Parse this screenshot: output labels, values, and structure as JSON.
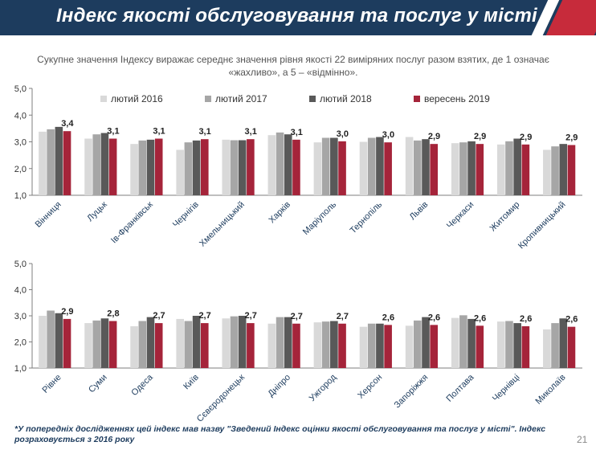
{
  "header": {
    "title": "Індекс якості обслуговування та послуг у місті"
  },
  "subtitle": "Сукупне значення Індексу виражає середнє значення рівня якості 22 виміряних послуг разом взятих, де 1 означає «жахливо», а 5 – «відмінно».",
  "footnote": "*У попередніх дослідженнях цей індекс мав назву \"Зведений Індекс оцінки якості обслуговування та послуг у місті\". Індекс розраховується з 2016 року",
  "page_number": "21",
  "colors": {
    "header_bg": "#1d3c5e",
    "accent_red": "#c72b3b",
    "series": [
      "#d9d9d9",
      "#a6a6a6",
      "#595959",
      "#a5243a"
    ]
  },
  "chart_data": [
    {
      "type": "bar",
      "title": "",
      "xlabel": "",
      "ylabel": "",
      "ylim": [
        1.0,
        5.0
      ],
      "yticks": [
        "1,0",
        "2,0",
        "3,0",
        "4,0",
        "5,0"
      ],
      "legend_placement": "top",
      "series": [
        {
          "name": "лютий 2016",
          "values": [
            3.38,
            3.12,
            2.92,
            2.7,
            3.08,
            3.25,
            2.98,
            3.0,
            3.18,
            2.95,
            2.9,
            2.7
          ]
        },
        {
          "name": "лютий 2017",
          "values": [
            3.47,
            3.28,
            3.05,
            2.98,
            3.06,
            3.35,
            3.15,
            3.15,
            3.05,
            2.98,
            3.02,
            2.83
          ]
        },
        {
          "name": "лютий 2018",
          "values": [
            3.56,
            3.33,
            3.08,
            3.05,
            3.06,
            3.28,
            3.15,
            3.18,
            3.1,
            3.02,
            3.12,
            2.92
          ]
        },
        {
          "name": "вересень 2019",
          "values": [
            3.4,
            3.12,
            3.12,
            3.1,
            3.1,
            3.08,
            3.02,
            2.98,
            2.92,
            2.92,
            2.9,
            2.88
          ]
        }
      ],
      "categories": [
        "Вінниця",
        "Луцьк",
        "Ів-Франківськ",
        "Чернігів",
        "Хмельницький",
        "Харків",
        "Маріуполь",
        "Тернопіль",
        "Львів",
        "Черкаси",
        "Житомир",
        "Кропивницький"
      ],
      "data_labels": [
        "3,4",
        "3,1",
        "3,1",
        "3,1",
        "3,1",
        "3,1",
        "3,0",
        "3,0",
        "2,9",
        "2,9",
        "2,9",
        "2,9"
      ]
    },
    {
      "type": "bar",
      "title": "",
      "xlabel": "",
      "ylabel": "",
      "ylim": [
        1.0,
        5.0
      ],
      "yticks": [
        "1,0",
        "2,0",
        "3,0",
        "4,0",
        "5,0"
      ],
      "series": [
        {
          "name": "лютий 2016",
          "values": [
            3.0,
            2.72,
            2.6,
            2.88,
            2.9,
            2.7,
            2.75,
            2.58,
            2.62,
            2.92,
            2.78,
            2.48
          ]
        },
        {
          "name": "лютий 2017",
          "values": [
            3.2,
            2.82,
            2.8,
            2.8,
            2.98,
            2.95,
            2.78,
            2.7,
            2.82,
            3.02,
            2.8,
            2.72
          ]
        },
        {
          "name": "лютий 2018",
          "values": [
            3.1,
            2.9,
            2.95,
            3.0,
            3.0,
            2.95,
            2.8,
            2.7,
            2.95,
            2.88,
            2.72,
            2.9
          ]
        },
        {
          "name": "вересень 2019",
          "values": [
            2.88,
            2.8,
            2.72,
            2.72,
            2.72,
            2.7,
            2.7,
            2.65,
            2.65,
            2.62,
            2.6,
            2.58
          ]
        }
      ],
      "categories": [
        "Рівне",
        "Суми",
        "Одеса",
        "Київ",
        "Сєвєродонецьк",
        "Дніпро",
        "Ужгород",
        "Херсон",
        "Запоріжжя",
        "Полтава",
        "Чернівці",
        "Миколаїв"
      ],
      "data_labels": [
        "2,9",
        "2,8",
        "2,7",
        "2,7",
        "2,7",
        "2,7",
        "2,7",
        "2,6",
        "2,6",
        "2,6",
        "2,6",
        "2,6"
      ]
    }
  ]
}
